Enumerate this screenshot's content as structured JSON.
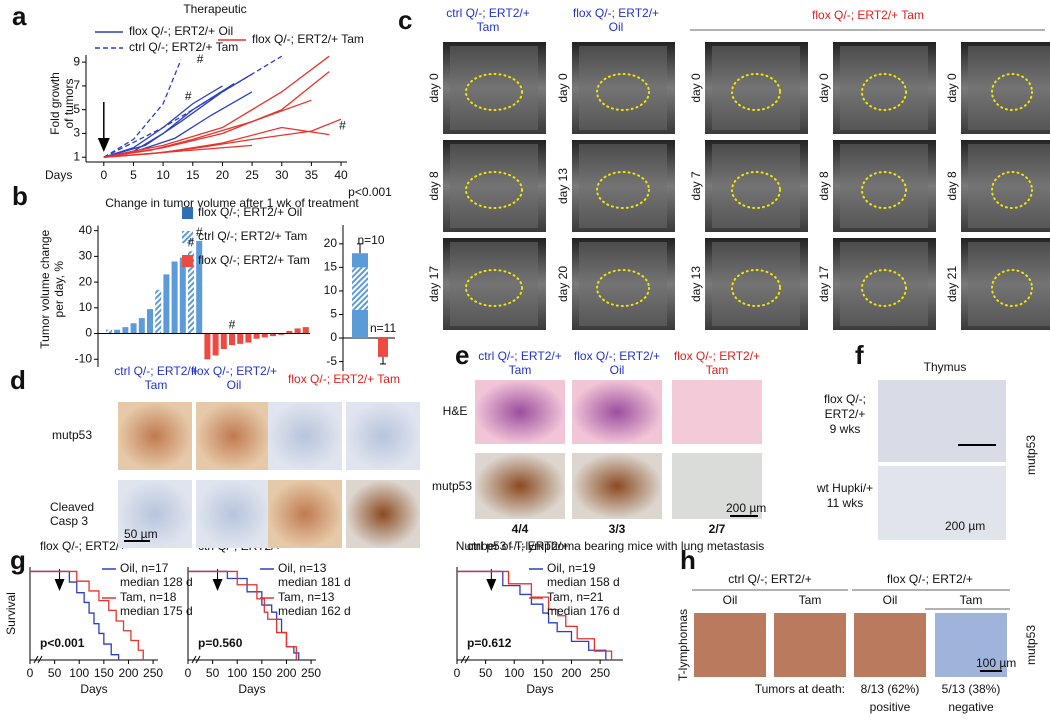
{
  "panel_letters": [
    "a",
    "b",
    "c",
    "d",
    "e",
    "f",
    "g",
    "h"
  ],
  "chart_data": [
    {
      "type": "line",
      "title": "Therapeutic",
      "xlabel": "Days",
      "ylabel": [
        "Fold growth",
        "of tumors"
      ],
      "xlim": [
        -3,
        41
      ],
      "xticks": [
        0,
        5,
        10,
        15,
        20,
        25,
        30,
        35,
        40
      ],
      "ylim": [
        0.6,
        9.6
      ],
      "yticks": [
        1,
        3,
        5,
        7,
        9
      ],
      "series": [
        {
          "name": "flox Q/-; ERT2/+ Oil",
          "color": "#2b3fc4",
          "dashed": false,
          "lines": [
            {
              "x": [
                0,
                5,
                10,
                15,
                20
              ],
              "values": [
                1,
                1.8,
                3.5,
                5.5,
                7
              ]
            },
            {
              "x": [
                0,
                7,
                13,
                20,
                25
              ],
              "values": [
                1,
                2,
                4,
                6.5,
                8
              ]
            },
            {
              "x": [
                0,
                5,
                10,
                15,
                22
              ],
              "values": [
                1,
                1.5,
                3,
                5,
                7.2
              ]
            },
            {
              "x": [
                0,
                6,
                12,
                18,
                25
              ],
              "values": [
                1,
                1.6,
                2.6,
                4.5,
                6.5
              ]
            }
          ]
        },
        {
          "name": "ctrl Q/-; ERT2/+ Tam",
          "color": "#2b3fc4",
          "dashed": true,
          "lines": [
            {
              "x": [
                0,
                5,
                10,
                13
              ],
              "values": [
                1,
                2.5,
                5.5,
                9.2
              ]
            },
            {
              "x": [
                0,
                10,
                20,
                30
              ],
              "values": [
                1,
                3.5,
                6.5,
                9.5
              ]
            }
          ]
        },
        {
          "name": "flox Q/-; ERT2/+ Tam",
          "color": "#e8322b",
          "dashed": false,
          "lines": [
            {
              "x": [
                0,
                10,
                20,
                30,
                38
              ],
              "values": [
                1,
                2,
                3.5,
                6.5,
                9.5
              ]
            },
            {
              "x": [
                0,
                10,
                20,
                30,
                38
              ],
              "values": [
                1,
                1.8,
                3,
                5,
                8.2
              ]
            },
            {
              "x": [
                0,
                8,
                15,
                25,
                35
              ],
              "values": [
                1,
                1.6,
                2.5,
                4,
                5.8
              ]
            },
            {
              "x": [
                0,
                8,
                16,
                25,
                35,
                40
              ],
              "values": [
                1,
                1.3,
                1.8,
                2.5,
                3.2,
                4.2
              ]
            },
            {
              "x": [
                0,
                10,
                20,
                30,
                38
              ],
              "values": [
                1,
                1.4,
                2.2,
                3.5,
                2.9
              ]
            },
            {
              "x": [
                0,
                5,
                15,
                25
              ],
              "values": [
                1,
                1.2,
                1.6,
                2
              ]
            }
          ]
        }
      ],
      "annotations": [
        {
          "text": "#",
          "x": 15,
          "y": 9.2
        },
        {
          "text": "#",
          "x": 13,
          "y": 6.1
        },
        {
          "text": "#",
          "x": 39,
          "y": 3.6
        }
      ]
    },
    {
      "type": "bar",
      "title": "Change in tumor volume after 1 wk of treatment",
      "ylabel": [
        "Tumor volume change",
        "per day, %"
      ],
      "ylim": [
        -13,
        42
      ],
      "yticks": [
        -10,
        0,
        10,
        20,
        30,
        40
      ],
      "series": [
        {
          "name": "flox Q/-; ERT2/+ Oil",
          "color": "#5b9bd8",
          "hatched": false,
          "values": [
            null,
            1.5,
            2.5,
            4,
            6,
            9.5,
            null,
            23,
            28,
            29.5,
            null,
            36,
            null,
            null,
            null,
            null,
            null,
            null,
            null,
            null,
            null,
            null,
            null,
            null,
            null
          ]
        },
        {
          "name": "ctrl Q/-; ERT2/+ Tam",
          "color": "#5b9bd8",
          "hatched": true,
          "values": [
            1.5,
            null,
            null,
            null,
            null,
            null,
            17,
            null,
            null,
            null,
            32,
            null,
            null,
            null,
            null,
            null,
            null,
            null,
            null,
            null,
            null,
            null,
            null,
            null,
            null
          ]
        },
        {
          "name": "flox Q/-; ERT2/+ Tam",
          "color": "#ef4a42",
          "hatched": false,
          "values": [
            null,
            null,
            null,
            null,
            null,
            null,
            null,
            null,
            null,
            null,
            null,
            null,
            -10,
            -8.5,
            -6,
            -4.5,
            -4,
            -3.5,
            -2,
            -1.5,
            -1,
            -0.5,
            1,
            2,
            2.5
          ]
        }
      ],
      "annotations": [
        {
          "text": "#",
          "bar": 10
        },
        {
          "text": "#",
          "bar": 11
        },
        {
          "text": "#",
          "bar": 15
        }
      ]
    },
    {
      "type": "stacked_bar",
      "ylim": [
        -7,
        24
      ],
      "yticks": [
        -5,
        0,
        5,
        10,
        15,
        20
      ],
      "bars": [
        {
          "segments": [
            6,
            9,
            3
          ],
          "hatched": [
            false,
            true,
            false
          ],
          "color": "#5b9bd8",
          "error": 2
        },
        {
          "segments": [
            -4
          ],
          "hatched": [
            false
          ],
          "color": "#ef4a42",
          "error": 1.5
        }
      ],
      "labels": [
        "p<0.001",
        "n=10",
        "n=11"
      ]
    },
    {
      "type": "survival",
      "title": "flox Q/-; ERT2/+",
      "xlabel": "Days",
      "ylabel": "Survival",
      "xlim": [
        0,
        260
      ],
      "xticks": [
        0,
        50,
        100,
        150,
        200,
        250
      ],
      "ylim": [
        0,
        1.05
      ],
      "pvalue": "p<0.001",
      "series": [
        {
          "name": "Oil, n=17",
          "note": "median 128 d",
          "color": "#2b3fc4",
          "x": [
            0,
            80,
            95,
            110,
            120,
            130,
            140,
            150,
            165,
            180
          ],
          "values": [
            1,
            0.88,
            0.76,
            0.65,
            0.53,
            0.41,
            0.3,
            0.18,
            0.06,
            0
          ]
        },
        {
          "name": "Tam, n=18",
          "note": "median 175 d",
          "color": "#e8322b",
          "x": [
            0,
            95,
            120,
            140,
            160,
            175,
            190,
            205,
            220,
            230
          ],
          "values": [
            1,
            0.89,
            0.78,
            0.67,
            0.56,
            0.44,
            0.33,
            0.22,
            0.11,
            0
          ]
        }
      ]
    },
    {
      "type": "survival",
      "title": "ctrl Q/-; ERT2/+",
      "xlabel": "Days",
      "xlim": [
        0,
        260
      ],
      "xticks": [
        0,
        50,
        100,
        150,
        200,
        250
      ],
      "ylim": [
        0,
        1.05
      ],
      "pvalue": "p=0.560",
      "series": [
        {
          "name": "Oil, n=13",
          "note": "median 181 d",
          "color": "#2b3fc4",
          "x": [
            0,
            80,
            120,
            150,
            170,
            180,
            190,
            200,
            215,
            225
          ],
          "values": [
            1,
            0.92,
            0.77,
            0.62,
            0.54,
            0.46,
            0.31,
            0.15,
            0.08,
            0
          ]
        },
        {
          "name": "Tam, n=13",
          "note": "median 162 d",
          "color": "#e8322b",
          "x": [
            0,
            100,
            140,
            155,
            162,
            180,
            200,
            220
          ],
          "values": [
            1,
            0.85,
            0.69,
            0.54,
            0.46,
            0.31,
            0.15,
            0
          ]
        }
      ]
    },
    {
      "type": "survival",
      "title": "ctrl p53 -/-; ERT2/+",
      "xlabel": "Days",
      "xlim": [
        0,
        290
      ],
      "xticks": [
        0,
        50,
        100,
        150,
        200,
        250
      ],
      "ylim": [
        0,
        1.05
      ],
      "pvalue": "p=0.612",
      "series": [
        {
          "name": "Oil, n=19",
          "note": "median 158 d",
          "color": "#2b3fc4",
          "x": [
            0,
            80,
            110,
            130,
            150,
            160,
            175,
            200,
            230,
            260
          ],
          "values": [
            1,
            0.84,
            0.74,
            0.63,
            0.53,
            0.42,
            0.32,
            0.21,
            0.11,
            0
          ]
        },
        {
          "name": "Tam, n=21",
          "note": "median 176 d",
          "color": "#e8322b",
          "x": [
            0,
            90,
            130,
            160,
            176,
            190,
            210,
            240,
            270
          ],
          "values": [
            1,
            0.86,
            0.71,
            0.57,
            0.5,
            0.38,
            0.24,
            0.1,
            0
          ]
        }
      ]
    }
  ],
  "c": {
    "headers": [
      [
        "ctrl Q/-; ERT2/+",
        "Tam"
      ],
      [
        "flox Q/-; ERT2/+",
        "Oil"
      ],
      [
        "flox Q/-; ERT2/+ Tam"
      ]
    ],
    "days": [
      [
        "day 0",
        "day 8",
        "day 17"
      ],
      [
        "day 0",
        "day 13",
        "day 20"
      ],
      [
        "day 0",
        "day 7",
        "day 13"
      ],
      [
        "day 0",
        "day 8",
        "day 17"
      ],
      [
        "day 0",
        "day 8",
        "day 21"
      ]
    ]
  },
  "d": {
    "headers": [
      [
        "ctrl Q/-; ERT2/+",
        "Tam"
      ],
      [
        "flox Q/-; ERT2/+",
        "Oil"
      ],
      [
        "flox Q/-; ERT2/+ Tam"
      ]
    ],
    "rows": [
      [
        "mutp53"
      ],
      [
        "Cleaved",
        "Casp 3"
      ]
    ],
    "scale": "50 µm"
  },
  "e": {
    "headers": [
      [
        "ctrl Q/-; ERT2/+",
        "Tam"
      ],
      [
        "flox Q/-; ERT2/+",
        "Oil"
      ],
      [
        "flox Q/-; ERT2/+",
        "Tam"
      ]
    ],
    "rows": [
      "H&E",
      "mutp53"
    ],
    "counts": [
      "4/4",
      "3/3",
      "2/7"
    ],
    "caption": "Number of T-lymphoma bearing mice with lung metastasis",
    "scale": "200 µm"
  },
  "f": {
    "title": "Thymus",
    "rows": [
      [
        "flox Q/-;",
        "ERT2/+",
        "9 wks"
      ],
      [
        "wt Hupki/+",
        "11 wks"
      ]
    ],
    "stain": "mutp53",
    "scale": "200 µm"
  },
  "h": {
    "groups": [
      "ctrl Q/-; ERT2/+",
      "flox Q/-; ERT2/+"
    ],
    "columns": [
      "Oil",
      "Tam",
      "Oil",
      "Tam"
    ],
    "row": "T-lymphomas",
    "stain": "mutp53",
    "footer": "Tumors at death:",
    "fractions": [
      "8/13 (62%)",
      "5/13 (38%)"
    ],
    "calls": [
      "positive",
      "negative"
    ],
    "scale": "100 µm"
  }
}
